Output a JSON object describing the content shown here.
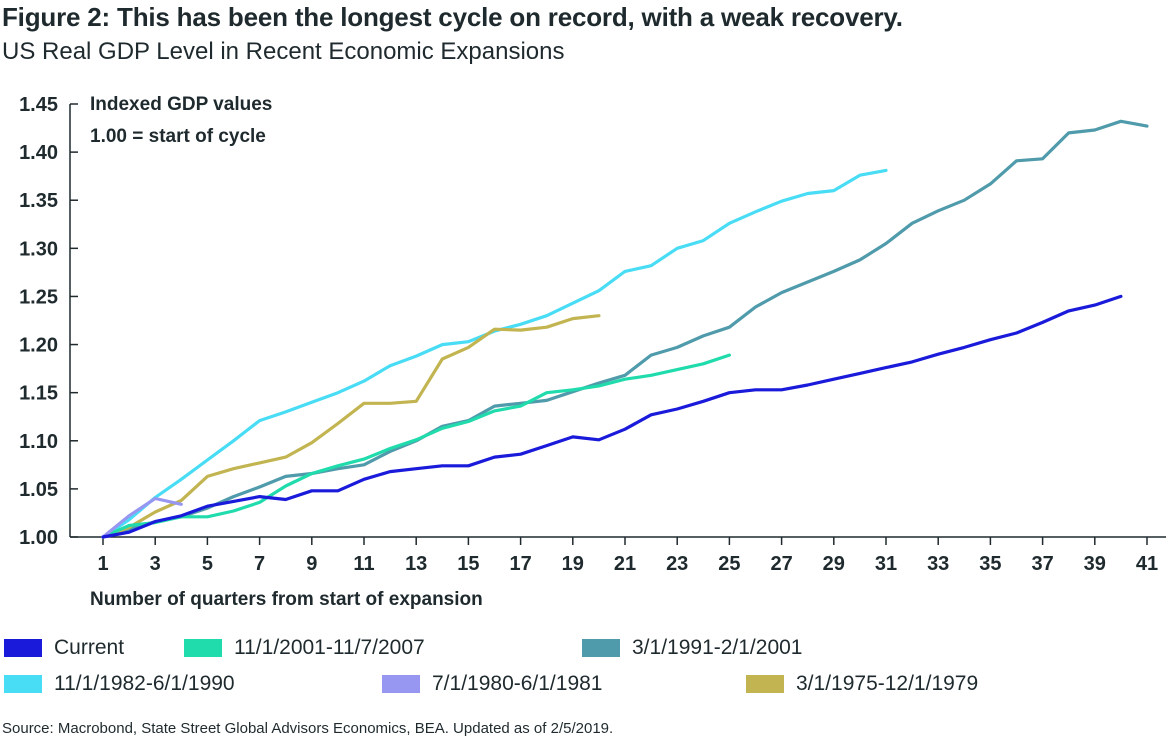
{
  "title": "Figure 2: This has been the longest cycle on record, with a weak recovery.",
  "subtitle": "US Real GDP Level in Recent Economic Expansions",
  "source": "Source: Macrobond, State Street Global Advisors Economics, BEA. Updated as of 2/5/2019.",
  "chart_data": {
    "type": "line",
    "title": "US Real GDP Level in Recent Economic Expansions",
    "xlabel": "Number of quarters from start of expansion",
    "ylabel": "",
    "annotation_lines": [
      "Indexed GDP values",
      "1.00 = start of cycle"
    ],
    "xlim": [
      1,
      42
    ],
    "ylim": [
      1.0,
      1.45
    ],
    "x_ticks": [
      "1",
      "3",
      "5",
      "7",
      "9",
      "11",
      "13",
      "15",
      "17",
      "19",
      "21",
      "23",
      "25",
      "27",
      "29",
      "31",
      "33",
      "35",
      "37",
      "39",
      "41"
    ],
    "y_ticks": [
      "1.00",
      "1.05",
      "1.10",
      "1.15",
      "1.20",
      "1.25",
      "1.30",
      "1.35",
      "1.40",
      "1.45"
    ],
    "grid": false,
    "legend_position": "bottom",
    "series": [
      {
        "name": "Current",
        "color": "#1a1adb",
        "values": [
          1.0,
          1.005,
          1.016,
          1.022,
          1.032,
          1.037,
          1.042,
          1.039,
          1.048,
          1.048,
          1.06,
          1.068,
          1.071,
          1.074,
          1.074,
          1.083,
          1.086,
          1.095,
          1.104,
          1.101,
          1.112,
          1.127,
          1.133,
          1.141,
          1.15,
          1.153,
          1.153,
          1.158,
          1.164,
          1.17,
          1.176,
          1.182,
          1.19,
          1.197,
          1.205,
          1.212,
          1.223,
          1.235,
          1.241,
          1.25
        ]
      },
      {
        "name": "11/1/2001-11/7/2007",
        "color": "#20dbac",
        "values": [
          1.0,
          1.012,
          1.015,
          1.021,
          1.021,
          1.027,
          1.036,
          1.053,
          1.066,
          1.074,
          1.081,
          1.092,
          1.101,
          1.113,
          1.12,
          1.131,
          1.136,
          1.15,
          1.153,
          1.157,
          1.164,
          1.168,
          1.174,
          1.18,
          1.189
        ]
      },
      {
        "name": "3/1/1991-2/1/2001",
        "color": "#4f9bab",
        "values": [
          1.0,
          1.008,
          1.016,
          1.021,
          1.03,
          1.042,
          1.052,
          1.063,
          1.066,
          1.071,
          1.075,
          1.089,
          1.1,
          1.115,
          1.121,
          1.136,
          1.139,
          1.142,
          1.151,
          1.16,
          1.168,
          1.189,
          1.197,
          1.209,
          1.218,
          1.239,
          1.254,
          1.265,
          1.276,
          1.288,
          1.305,
          1.326,
          1.339,
          1.35,
          1.367,
          1.391,
          1.393,
          1.42,
          1.423,
          1.432,
          1.427
        ]
      },
      {
        "name": "11/1/1982-6/1/1990",
        "color": "#48dcf5",
        "values": [
          1.0,
          1.018,
          1.041,
          1.06,
          1.08,
          1.1,
          1.121,
          1.13,
          1.14,
          1.15,
          1.162,
          1.178,
          1.188,
          1.2,
          1.203,
          1.214,
          1.221,
          1.23,
          1.243,
          1.256,
          1.276,
          1.282,
          1.3,
          1.308,
          1.326,
          1.338,
          1.349,
          1.357,
          1.36,
          1.376,
          1.381
        ]
      },
      {
        "name": "7/1/1980-6/1/1981",
        "color": "#9797f2",
        "values": [
          1.0,
          1.022,
          1.04,
          1.034
        ]
      },
      {
        "name": "3/1/1975-12/1/1979",
        "color": "#c2b551",
        "values": [
          1.0,
          1.01,
          1.026,
          1.038,
          1.063,
          1.071,
          1.077,
          1.083,
          1.098,
          1.118,
          1.139,
          1.139,
          1.141,
          1.185,
          1.197,
          1.216,
          1.215,
          1.218,
          1.227,
          1.23
        ]
      }
    ]
  }
}
